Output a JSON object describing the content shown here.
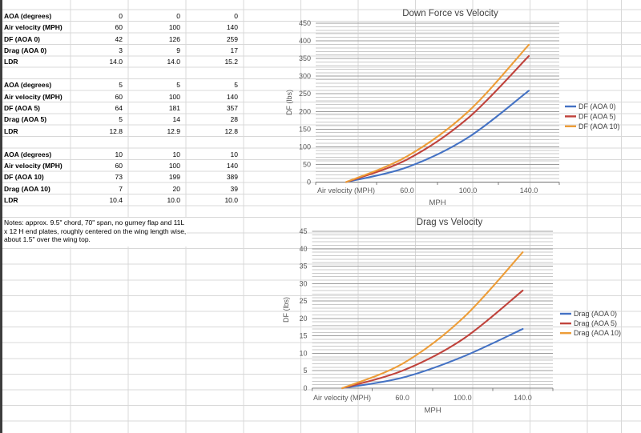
{
  "sheet": {
    "notes": "Notes: approx. 9.5\" chord, 70\" span, no gurney flap and 11L x 12 H end plates, roughly centered on the wing length wise, about 1.5\" over the wing top.",
    "tables": [
      {
        "rows": [
          {
            "label": "AOA (degrees)",
            "values": [
              "0",
              "0",
              "0"
            ]
          },
          {
            "label": "Air velocity (MPH)",
            "values": [
              "60",
              "100",
              "140"
            ]
          },
          {
            "label": "DF (AOA 0)",
            "values": [
              "42",
              "126",
              "259"
            ]
          },
          {
            "label": "Drag (AOA 0)",
            "values": [
              "3",
              "9",
              "17"
            ]
          },
          {
            "label": "LDR",
            "values": [
              "14.0",
              "14.0",
              "15.2"
            ]
          }
        ]
      },
      {
        "rows": [
          {
            "label": "AOA (degrees)",
            "values": [
              "5",
              "5",
              "5"
            ]
          },
          {
            "label": "Air velocity (MPH)",
            "values": [
              "60",
              "100",
              "140"
            ]
          },
          {
            "label": "DF (AOA 5)",
            "values": [
              "64",
              "181",
              "357"
            ]
          },
          {
            "label": "Drag (AOA 5)",
            "values": [
              "5",
              "14",
              "28"
            ]
          },
          {
            "label": "LDR",
            "values": [
              "12.8",
              "12.9",
              "12.8"
            ]
          }
        ]
      },
      {
        "rows": [
          {
            "label": "AOA (degrees)",
            "values": [
              "10",
              "10",
              "10"
            ]
          },
          {
            "label": "Air velocity (MPH)",
            "values": [
              "60",
              "100",
              "140"
            ]
          },
          {
            "label": "DF (AOA 10)",
            "values": [
              "73",
              "199",
              "389"
            ]
          },
          {
            "label": "Drag (AOA 10)",
            "values": [
              "7",
              "20",
              "39"
            ]
          },
          {
            "label": "LDR",
            "values": [
              "10.4",
              "10.0",
              "10.0"
            ]
          }
        ]
      }
    ]
  },
  "chart_data": [
    {
      "type": "line",
      "title": "Down Force vs Velocity",
      "categories": [
        "Air velocity (MPH)",
        "60.0",
        "100.0",
        "140.0"
      ],
      "series": [
        {
          "name": "DF (AOA 0)",
          "color": "#4472C4",
          "values": [
            0,
            42,
            126,
            259
          ]
        },
        {
          "name": "DF (AOA 5)",
          "color": "#C0433C",
          "values": [
            0,
            64,
            181,
            357
          ]
        },
        {
          "name": "DF (AOA 10)",
          "color": "#ED9D38",
          "values": [
            0,
            73,
            199,
            389
          ]
        }
      ],
      "xlabel": "MPH",
      "ylabel": "DF (lbs)",
      "ylim": [
        0,
        450
      ],
      "y_major": 50,
      "y_minor": 10,
      "grid": true,
      "smooth": true,
      "legend_position": "right"
    },
    {
      "type": "line",
      "title": "Drag vs Velocity",
      "categories": [
        "Air velocity (MPH)",
        "60.0",
        "100.0",
        "140.0"
      ],
      "series": [
        {
          "name": "Drag (AOA 0)",
          "color": "#4472C4",
          "values": [
            0,
            3,
            9,
            17
          ]
        },
        {
          "name": "Drag (AOA 5)",
          "color": "#C0433C",
          "values": [
            0,
            5,
            14,
            28
          ]
        },
        {
          "name": "Drag (AOA 10)",
          "color": "#ED9D38",
          "values": [
            0,
            7,
            20,
            39
          ]
        }
      ],
      "xlabel": "MPH",
      "ylabel": "DF (lbs)",
      "ylim": [
        0,
        45
      ],
      "y_major": 5,
      "y_minor": 1,
      "grid": true,
      "smooth": true,
      "legend_position": "right"
    }
  ]
}
